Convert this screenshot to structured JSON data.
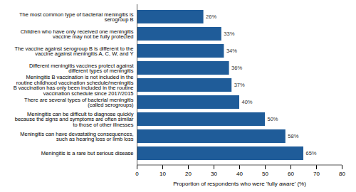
{
  "chart_data": {
    "type": "bar",
    "orientation": "horizontal",
    "x_label": "Proportion of respondents who were 'fully aware' (%)",
    "categories": [
      "The most common type of bacterial meningitis is serogroup B",
      "Children who have only received one meningitis vaccine may not be fully protected",
      "The vaccine against serogroup B is different to the vaccine against meningitis A, C, W, and Y",
      "Different meningitis vaccines protect against different types of meningitis",
      "Meningitis B vaccination is not included in the routine childhood vaccination schedule/meningitis B vaccination has only been included in the routine vaccination schedule since 2017/2015",
      "There are several types of bacterial meningitis (called serogroups)",
      "Meningitis can be difficult to diagnose quickly because the signs and symptoms are often similar to those of other illnesses",
      "Meningitis can have devastating consequences, such as hearing loss or limb loss",
      "Meningitis is a rare but serious disease"
    ],
    "values": [
      26,
      33,
      34,
      36,
      37,
      40,
      50,
      58,
      65
    ],
    "value_labels": [
      "26%",
      "33%",
      "34%",
      "36%",
      "37%",
      "40%",
      "50%",
      "58%",
      "65%"
    ],
    "data_labels": true,
    "color": "#1f5c99",
    "xlim": [
      0,
      80
    ],
    "xticks": [
      0,
      10,
      20,
      30,
      40,
      50,
      60,
      70,
      80
    ],
    "grid": false
  }
}
